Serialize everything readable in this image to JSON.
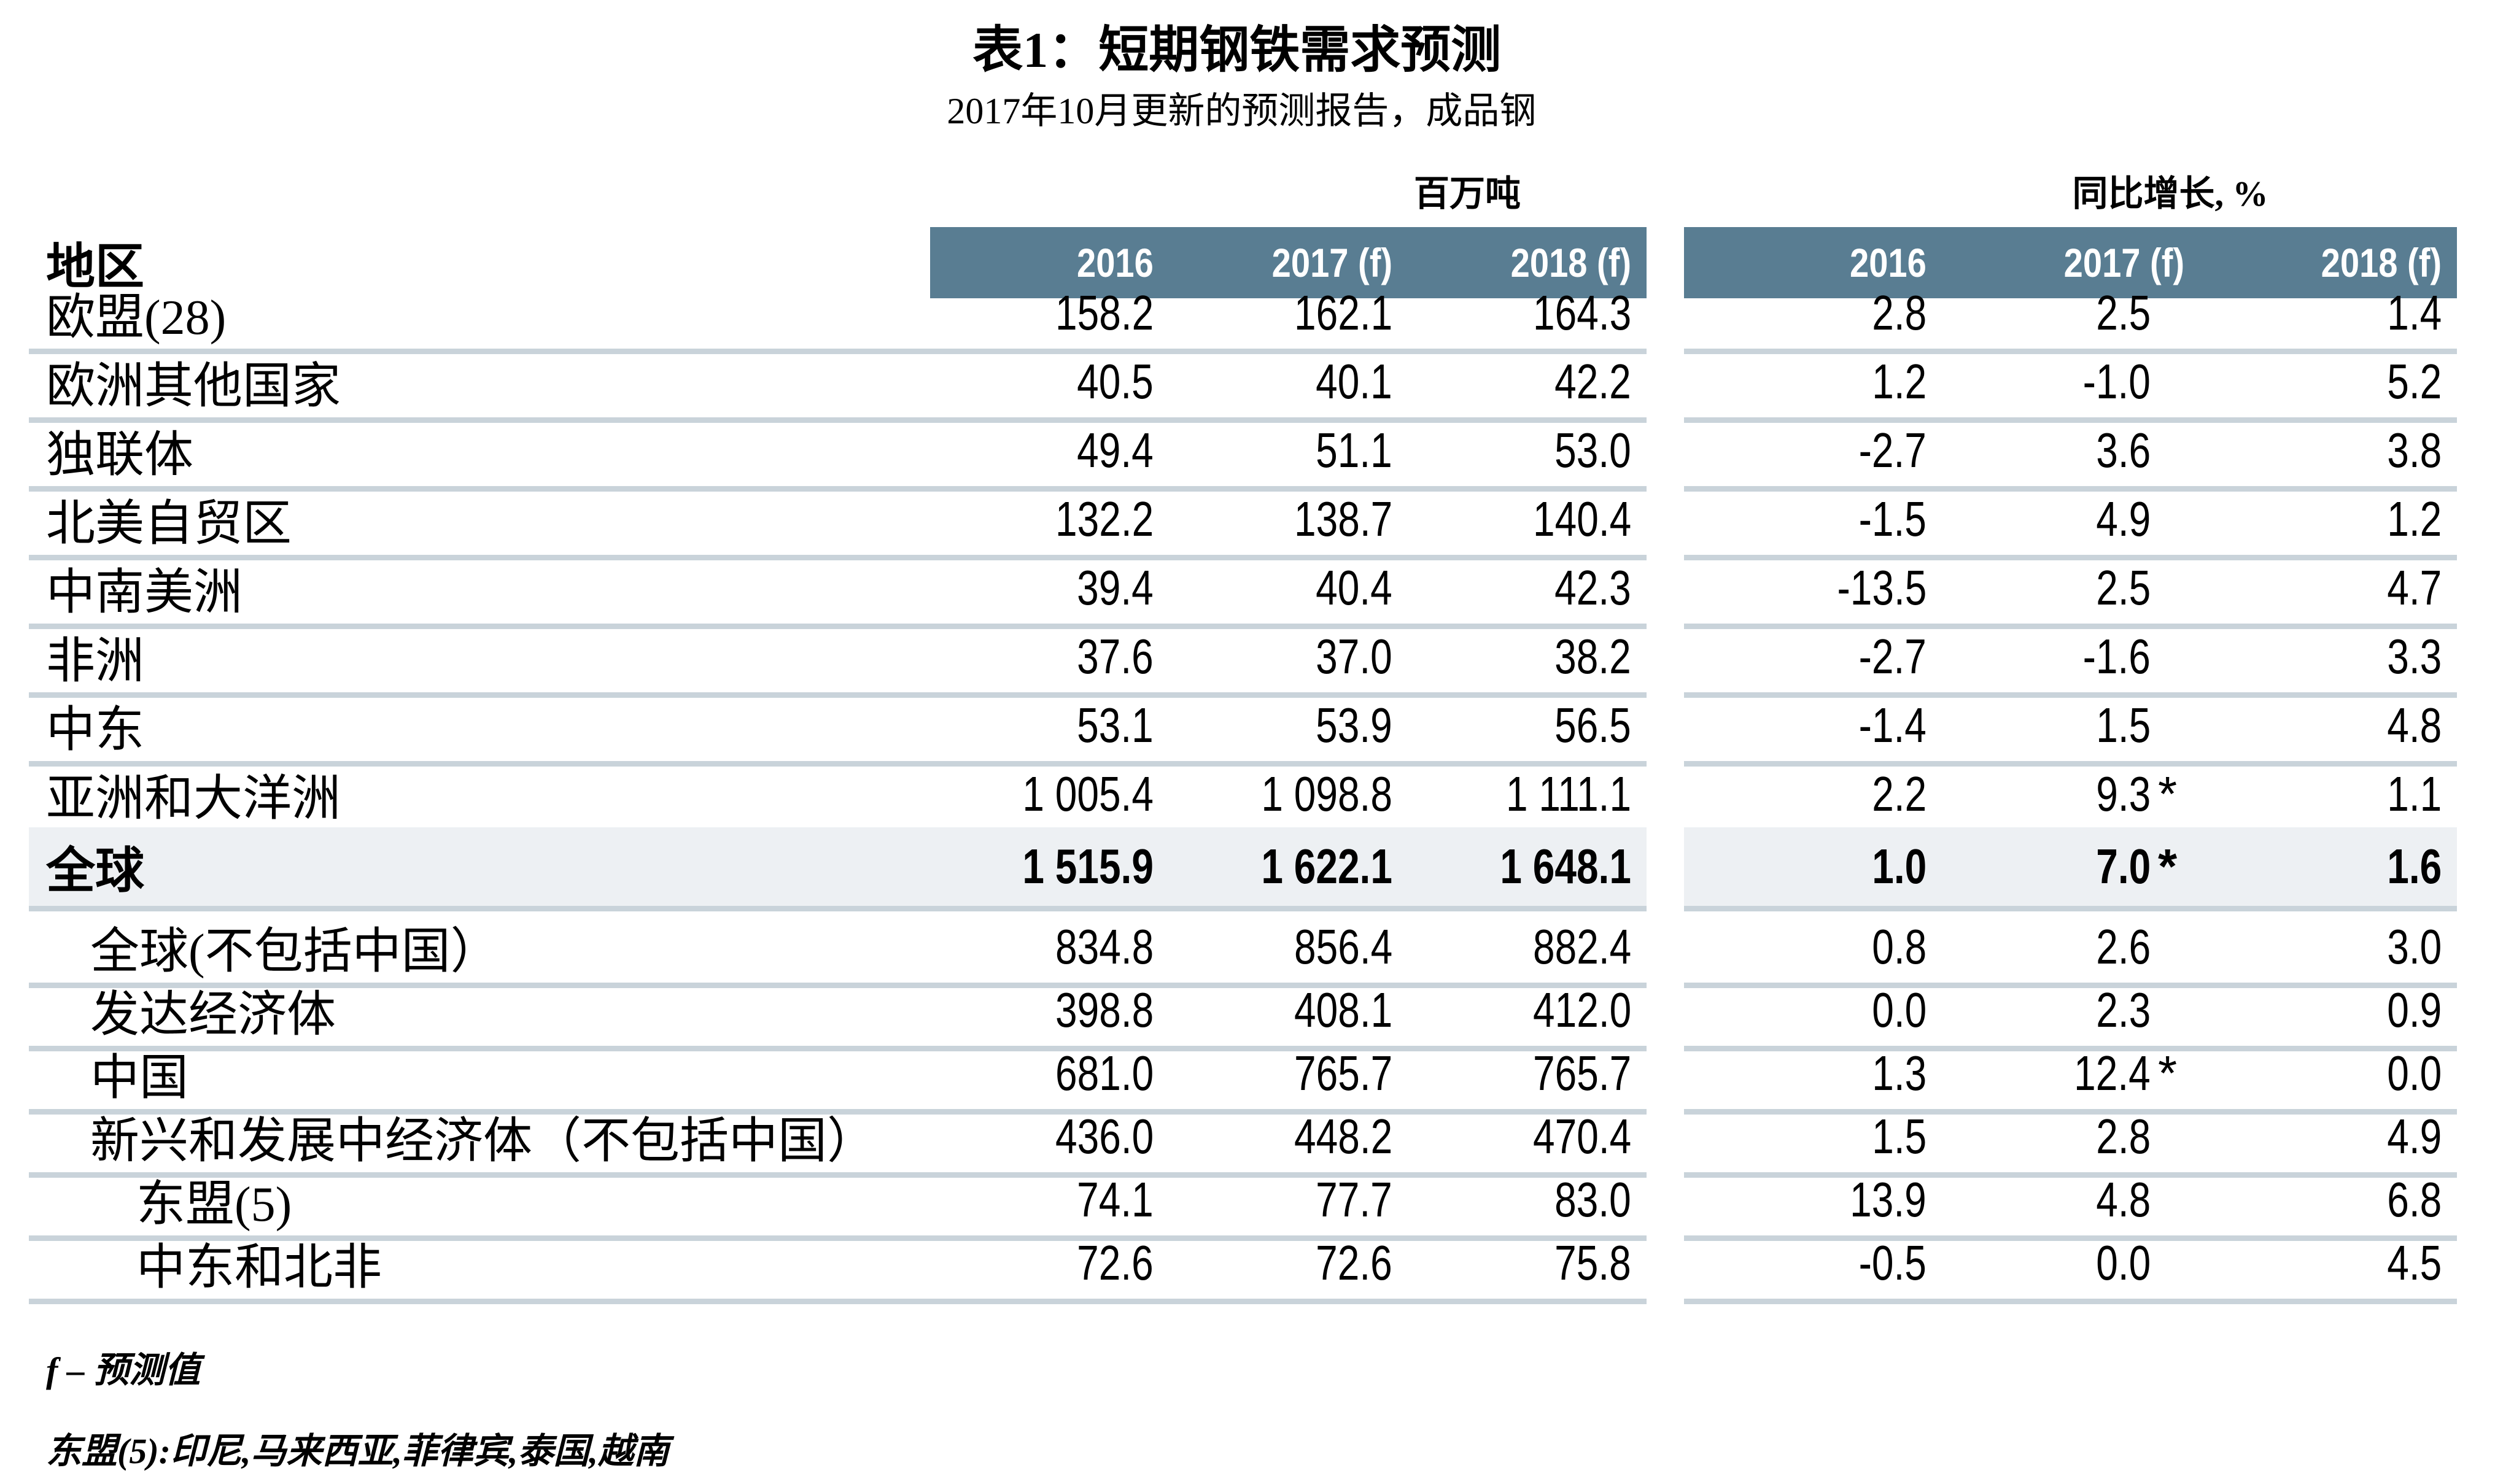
{
  "title": "表1：短期钢铁需求预测",
  "subtitle": "2017年10月更新的预测报告，成品钢",
  "region_header": "地区",
  "groups": [
    {
      "label": "百万吨",
      "columns": [
        "2016",
        "2017 (f)",
        "2018 (f)"
      ]
    },
    {
      "label": "同比增长, %",
      "columns": [
        "2016",
        "2017 (f)",
        "2018 (f)"
      ]
    }
  ],
  "rows": [
    {
      "label": "欧盟(28)",
      "indent": 0,
      "highlight": false,
      "mt": [
        "158.2",
        "162.1",
        "164.3"
      ],
      "growth": [
        "2.8",
        "2.5",
        "1.4"
      ],
      "stars": [
        false,
        false,
        false
      ]
    },
    {
      "label": "欧洲其他国家",
      "indent": 0,
      "highlight": false,
      "mt": [
        "40.5",
        "40.1",
        "42.2"
      ],
      "growth": [
        "1.2",
        "-1.0",
        "5.2"
      ],
      "stars": [
        false,
        false,
        false
      ]
    },
    {
      "label": "独联体",
      "indent": 0,
      "highlight": false,
      "mt": [
        "49.4",
        "51.1",
        "53.0"
      ],
      "growth": [
        "-2.7",
        "3.6",
        "3.8"
      ],
      "stars": [
        false,
        false,
        false
      ]
    },
    {
      "label": "北美自贸区",
      "indent": 0,
      "highlight": false,
      "mt": [
        "132.2",
        "138.7",
        "140.4"
      ],
      "growth": [
        "-1.5",
        "4.9",
        "1.2"
      ],
      "stars": [
        false,
        false,
        false
      ]
    },
    {
      "label": "中南美洲",
      "indent": 0,
      "highlight": false,
      "mt": [
        "39.4",
        "40.4",
        "42.3"
      ],
      "growth": [
        "-13.5",
        "2.5",
        "4.7"
      ],
      "stars": [
        false,
        false,
        false
      ]
    },
    {
      "label": "非洲",
      "indent": 0,
      "highlight": false,
      "mt": [
        "37.6",
        "37.0",
        "38.2"
      ],
      "growth": [
        "-2.7",
        "-1.6",
        "3.3"
      ],
      "stars": [
        false,
        false,
        false
      ]
    },
    {
      "label": "中东",
      "indent": 0,
      "highlight": false,
      "mt": [
        "53.1",
        "53.9",
        "56.5"
      ],
      "growth": [
        "-1.4",
        "1.5",
        "4.8"
      ],
      "stars": [
        false,
        false,
        false
      ]
    },
    {
      "label": "亚洲和大洋洲",
      "indent": 0,
      "highlight": false,
      "mt": [
        "1 005.4",
        "1 098.8",
        "1 111.1"
      ],
      "growth": [
        "2.2",
        "9.3",
        "1.1"
      ],
      "stars": [
        false,
        true,
        false
      ]
    },
    {
      "label": "全球",
      "indent": 0,
      "highlight": true,
      "mt": [
        "1 515.9",
        "1 622.1",
        "1 648.1"
      ],
      "growth": [
        "1.0",
        "7.0",
        "1.6"
      ],
      "stars": [
        false,
        true,
        false
      ]
    },
    {
      "label": "全球(不包括中国）",
      "indent": 1,
      "highlight": false,
      "mt": [
        "834.8",
        "856.4",
        "882.4"
      ],
      "growth": [
        "0.8",
        "2.6",
        "3.0"
      ],
      "stars": [
        false,
        false,
        false
      ]
    },
    {
      "label": "发达经济体",
      "indent": 1,
      "highlight": false,
      "mt": [
        "398.8",
        "408.1",
        "412.0"
      ],
      "growth": [
        "0.0",
        "2.3",
        "0.9"
      ],
      "stars": [
        false,
        false,
        false
      ]
    },
    {
      "label": "中国",
      "indent": 1,
      "highlight": false,
      "mt": [
        "681.0",
        "765.7",
        "765.7"
      ],
      "growth": [
        "1.3",
        "12.4",
        "0.0"
      ],
      "stars": [
        false,
        true,
        false
      ]
    },
    {
      "label": "新兴和发展中经济体（不包括中国）",
      "indent": 1,
      "highlight": false,
      "mt": [
        "436.0",
        "448.2",
        "470.4"
      ],
      "growth": [
        "1.5",
        "2.8",
        "4.9"
      ],
      "stars": [
        false,
        false,
        false
      ]
    },
    {
      "label": "东盟(5)",
      "indent": 2,
      "highlight": false,
      "mt": [
        "74.1",
        "77.7",
        "83.0"
      ],
      "growth": [
        "13.9",
        "4.8",
        "6.8"
      ],
      "stars": [
        false,
        false,
        false
      ]
    },
    {
      "label": "中东和北非",
      "indent": 2,
      "highlight": false,
      "mt": [
        "72.6",
        "72.6",
        "75.8"
      ],
      "growth": [
        "-0.5",
        "0.0",
        "4.5"
      ],
      "stars": [
        false,
        false,
        false
      ]
    }
  ],
  "footnotes": [
    "f – 预测值",
    "东盟(5):印尼,马来西亚,菲律宾,泰国,越南"
  ],
  "colors": {
    "header_band": "#597d92",
    "header_text": "#ffffff",
    "highlight_row": "#edf0f3",
    "separator": "#c9d3da",
    "text": "#000000"
  }
}
